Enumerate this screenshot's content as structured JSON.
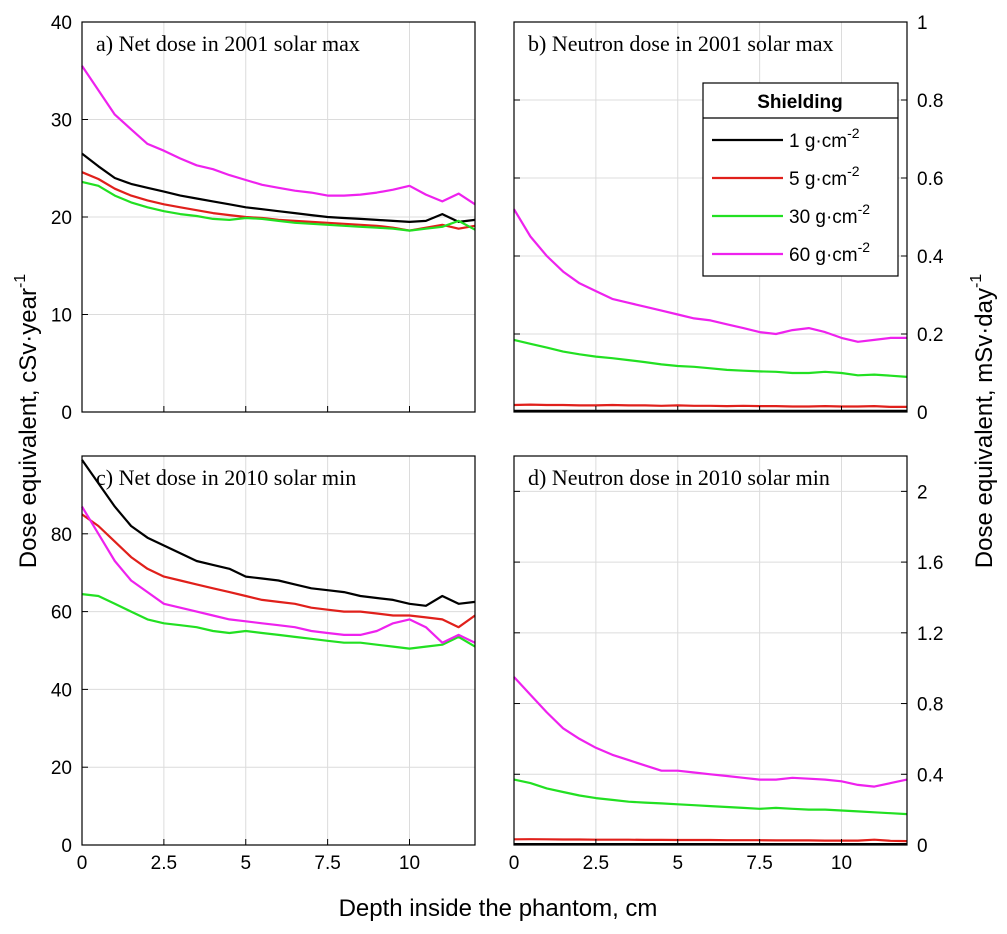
{
  "figure": {
    "xlabel": "Depth inside the phantom, cm",
    "ylabel_left": "Dose equivalent, cSv·year",
    "ylabel_left_sup": "-1",
    "ylabel_right": "Dose equivalent, mSv·day",
    "ylabel_right_sup": "-1"
  },
  "legend": {
    "title": "Shielding",
    "entries": [
      {
        "label": "1 g·cm",
        "sup": "-2",
        "color": "#000000"
      },
      {
        "label": "5 g·cm",
        "sup": "-2",
        "color": "#e0201b"
      },
      {
        "label": "30 g·cm",
        "sup": "-2",
        "color": "#22e022"
      },
      {
        "label": "60 g·cm",
        "sup": "-2",
        "color": "#ee22ee"
      }
    ]
  },
  "chart_data": [
    {
      "id": "a",
      "type": "line",
      "title": "a)  Net dose in 2001 solar max",
      "xlim": [
        0,
        12
      ],
      "xticks": [
        0,
        2.5,
        5,
        7.5,
        10
      ],
      "xtick_labels": [
        "",
        "",
        "",
        "",
        ""
      ],
      "ylim": [
        0,
        40
      ],
      "yticks": [
        0,
        10,
        20,
        30,
        40
      ],
      "ytick_labels": [
        "0",
        "10",
        "20",
        "30",
        "40"
      ],
      "y_axis_side": "left",
      "grid": true,
      "x": [
        0,
        0.5,
        1,
        1.5,
        2,
        2.5,
        3,
        3.5,
        4,
        4.5,
        5,
        5.5,
        6,
        6.5,
        7,
        7.5,
        8,
        8.5,
        9,
        9.5,
        10,
        10.5,
        11,
        11.5,
        12
      ],
      "series": [
        {
          "name": "1 g·cm-2",
          "color": "#000000",
          "values": [
            26.5,
            25.2,
            24.0,
            23.4,
            23.0,
            22.6,
            22.2,
            21.9,
            21.6,
            21.3,
            21.0,
            20.8,
            20.6,
            20.4,
            20.2,
            20.0,
            19.9,
            19.8,
            19.7,
            19.6,
            19.5,
            19.6,
            20.3,
            19.5,
            19.7
          ]
        },
        {
          "name": "5 g·cm-2",
          "color": "#e0201b",
          "values": [
            24.6,
            23.9,
            22.9,
            22.2,
            21.7,
            21.3,
            21.0,
            20.7,
            20.4,
            20.2,
            20.0,
            19.9,
            19.7,
            19.6,
            19.5,
            19.4,
            19.3,
            19.2,
            19.1,
            18.9,
            18.6,
            18.9,
            19.2,
            18.8,
            19.1
          ]
        },
        {
          "name": "30 g·cm-2",
          "color": "#22e022",
          "values": [
            23.6,
            23.2,
            22.2,
            21.5,
            21.0,
            20.6,
            20.3,
            20.1,
            19.8,
            19.7,
            19.9,
            19.8,
            19.6,
            19.4,
            19.3,
            19.2,
            19.1,
            19.0,
            18.9,
            18.8,
            18.6,
            18.8,
            19.0,
            19.6,
            18.7
          ]
        },
        {
          "name": "60 g·cm-2",
          "color": "#ee22ee",
          "values": [
            35.5,
            33.0,
            30.5,
            29.0,
            27.5,
            26.8,
            26.0,
            25.3,
            24.9,
            24.3,
            23.8,
            23.3,
            23.0,
            22.7,
            22.5,
            22.2,
            22.2,
            22.3,
            22.5,
            22.8,
            23.2,
            22.3,
            21.6,
            22.4,
            21.3
          ]
        }
      ]
    },
    {
      "id": "b",
      "type": "line",
      "title": "b)  Neutron dose in 2001 solar max",
      "xlim": [
        0,
        12
      ],
      "xticks": [
        0,
        2.5,
        5,
        7.5,
        10
      ],
      "xtick_labels": [
        "",
        "",
        "",
        "",
        ""
      ],
      "ylim": [
        0,
        1.0
      ],
      "yticks": [
        0,
        0.2,
        0.4,
        0.6,
        0.8,
        1.0
      ],
      "ytick_labels": [
        "0",
        "0.2",
        "0.4",
        "0.6",
        "0.8",
        "1"
      ],
      "y_axis_side": "right",
      "grid": true,
      "x": [
        0,
        0.5,
        1,
        1.5,
        2,
        2.5,
        3,
        3.5,
        4,
        4.5,
        5,
        5.5,
        6,
        6.5,
        7,
        7.5,
        8,
        8.5,
        9,
        9.5,
        10,
        10.5,
        11,
        11.5,
        12
      ],
      "series": [
        {
          "name": "1 g·cm-2",
          "color": "#000000",
          "values": [
            0.003,
            0.003,
            0.003,
            0.003,
            0.003,
            0.003,
            0.003,
            0.003,
            0.003,
            0.003,
            0.003,
            0.003,
            0.003,
            0.003,
            0.003,
            0.003,
            0.003,
            0.003,
            0.003,
            0.003,
            0.003,
            0.003,
            0.003,
            0.003,
            0.003
          ]
        },
        {
          "name": "5 g·cm-2",
          "color": "#e0201b",
          "values": [
            0.018,
            0.019,
            0.018,
            0.018,
            0.017,
            0.017,
            0.018,
            0.017,
            0.017,
            0.016,
            0.017,
            0.016,
            0.016,
            0.015,
            0.016,
            0.015,
            0.015,
            0.014,
            0.014,
            0.015,
            0.014,
            0.014,
            0.015,
            0.013,
            0.013
          ]
        },
        {
          "name": "30 g·cm-2",
          "color": "#22e022",
          "values": [
            0.185,
            0.175,
            0.165,
            0.155,
            0.148,
            0.142,
            0.138,
            0.133,
            0.128,
            0.122,
            0.118,
            0.116,
            0.112,
            0.108,
            0.106,
            0.104,
            0.103,
            0.1,
            0.1,
            0.103,
            0.1,
            0.094,
            0.096,
            0.093,
            0.09
          ]
        },
        {
          "name": "60 g·cm-2",
          "color": "#ee22ee",
          "values": [
            0.52,
            0.45,
            0.4,
            0.36,
            0.33,
            0.31,
            0.29,
            0.28,
            0.27,
            0.26,
            0.25,
            0.24,
            0.235,
            0.225,
            0.215,
            0.205,
            0.2,
            0.21,
            0.215,
            0.205,
            0.19,
            0.18,
            0.185,
            0.19,
            0.19
          ]
        }
      ]
    },
    {
      "id": "c",
      "type": "line",
      "title": "c)  Net dose in 2010 solar min",
      "xlim": [
        0,
        12
      ],
      "xticks": [
        0,
        2.5,
        5,
        7.5,
        10
      ],
      "xtick_labels": [
        "0",
        "2.5",
        "5",
        "7.5",
        "10"
      ],
      "ylim": [
        0,
        100
      ],
      "yticks": [
        0,
        20,
        40,
        60,
        80,
        100
      ],
      "ytick_labels": [
        "0",
        "20",
        "40",
        "60",
        "80",
        ""
      ],
      "y_axis_side": "left",
      "grid": true,
      "x": [
        0,
        0.5,
        1,
        1.5,
        2,
        2.5,
        3,
        3.5,
        4,
        4.5,
        5,
        5.5,
        6,
        6.5,
        7,
        7.5,
        8,
        8.5,
        9,
        9.5,
        10,
        10.5,
        11,
        11.5,
        12
      ],
      "series": [
        {
          "name": "1 g·cm-2",
          "color": "#000000",
          "values": [
            99,
            93,
            87,
            82,
            79,
            77,
            75,
            73,
            72,
            71,
            69,
            68.5,
            68,
            67,
            66,
            65.5,
            65,
            64,
            63.5,
            63,
            62,
            61.5,
            64,
            62,
            62.5
          ]
        },
        {
          "name": "5 g·cm-2",
          "color": "#e0201b",
          "values": [
            85,
            82,
            78,
            74,
            71,
            69,
            68,
            67,
            66,
            65,
            64,
            63,
            62.5,
            62,
            61,
            60.5,
            60,
            60,
            59.5,
            59,
            59,
            58.5,
            58,
            56,
            59
          ]
        },
        {
          "name": "30 g·cm-2",
          "color": "#22e022",
          "values": [
            64.5,
            64,
            62,
            60,
            58,
            57,
            56.5,
            56,
            55,
            54.5,
            55,
            54.5,
            54,
            53.5,
            53,
            52.5,
            52,
            52,
            51.5,
            51,
            50.5,
            51,
            51.5,
            53.5,
            51
          ]
        },
        {
          "name": "60 g·cm-2",
          "color": "#ee22ee",
          "values": [
            87,
            80,
            73,
            68,
            65,
            62,
            61,
            60,
            59,
            58,
            57.5,
            57,
            56.5,
            56,
            55,
            54.5,
            54,
            54,
            55,
            57,
            58,
            56,
            52,
            54,
            52
          ]
        }
      ]
    },
    {
      "id": "d",
      "type": "line",
      "title": "d)  Neutron dose in 2010 solar min",
      "xlim": [
        0,
        12
      ],
      "xticks": [
        0,
        2.5,
        5,
        7.5,
        10
      ],
      "xtick_labels": [
        "0",
        "2.5",
        "5",
        "7.5",
        "10"
      ],
      "ylim": [
        0,
        2.2
      ],
      "yticks": [
        0,
        0.4,
        0.8,
        1.2,
        1.6,
        2.0
      ],
      "ytick_labels": [
        "0",
        "0.4",
        "0.8",
        "1.2",
        "1.6",
        "2"
      ],
      "y_axis_side": "right",
      "grid": true,
      "x": [
        0,
        0.5,
        1,
        1.5,
        2,
        2.5,
        3,
        3.5,
        4,
        4.5,
        5,
        5.5,
        6,
        6.5,
        7,
        7.5,
        8,
        8.5,
        9,
        9.5,
        10,
        10.5,
        11,
        11.5,
        12
      ],
      "series": [
        {
          "name": "1 g·cm-2",
          "color": "#000000",
          "values": [
            0.005,
            0.005,
            0.005,
            0.005,
            0.005,
            0.005,
            0.005,
            0.005,
            0.005,
            0.005,
            0.005,
            0.005,
            0.005,
            0.005,
            0.005,
            0.005,
            0.005,
            0.005,
            0.005,
            0.005,
            0.005,
            0.005,
            0.005,
            0.005,
            0.005
          ]
        },
        {
          "name": "5 g·cm-2",
          "color": "#e0201b",
          "values": [
            0.032,
            0.033,
            0.032,
            0.031,
            0.031,
            0.03,
            0.03,
            0.03,
            0.029,
            0.029,
            0.028,
            0.028,
            0.028,
            0.027,
            0.027,
            0.027,
            0.026,
            0.026,
            0.026,
            0.025,
            0.025,
            0.025,
            0.03,
            0.024,
            0.022
          ]
        },
        {
          "name": "30 g·cm-2",
          "color": "#22e022",
          "values": [
            0.37,
            0.35,
            0.32,
            0.3,
            0.28,
            0.265,
            0.255,
            0.245,
            0.24,
            0.235,
            0.23,
            0.225,
            0.22,
            0.215,
            0.21,
            0.205,
            0.21,
            0.205,
            0.2,
            0.2,
            0.195,
            0.19,
            0.185,
            0.18,
            0.175
          ]
        },
        {
          "name": "60 g·cm-2",
          "color": "#ee22ee",
          "values": [
            0.95,
            0.85,
            0.75,
            0.66,
            0.6,
            0.55,
            0.51,
            0.48,
            0.45,
            0.42,
            0.42,
            0.41,
            0.4,
            0.39,
            0.38,
            0.37,
            0.37,
            0.38,
            0.375,
            0.37,
            0.36,
            0.34,
            0.33,
            0.35,
            0.37
          ]
        }
      ]
    }
  ]
}
